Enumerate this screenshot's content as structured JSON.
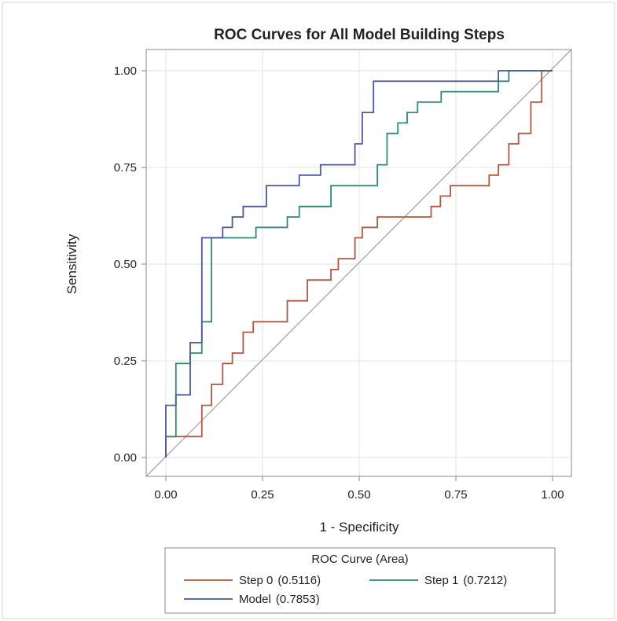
{
  "chart_data": {
    "type": "line",
    "title": "ROC Curves for All Model Building Steps",
    "xlabel": "1 - Specificity",
    "ylabel": "Sensitivity",
    "xlim": [
      0,
      1
    ],
    "ylim": [
      0,
      1
    ],
    "xticks": [
      "0.00",
      "0.25",
      "0.50",
      "0.75",
      "1.00"
    ],
    "yticks": [
      "0.00",
      "0.25",
      "0.50",
      "0.75",
      "1.00"
    ],
    "grid": true,
    "diagonal_reference": true,
    "legend": {
      "title": "ROC Curve (Area)",
      "placement": "bottom"
    },
    "series": [
      {
        "name": "Step 0",
        "area": "(0.5116)",
        "color": "#b5573f",
        "points": [
          [
            0,
            0
          ],
          [
            0,
            0.054
          ],
          [
            0.093,
            0.054
          ],
          [
            0.093,
            0.135
          ],
          [
            0.118,
            0.135
          ],
          [
            0.118,
            0.189
          ],
          [
            0.147,
            0.189
          ],
          [
            0.147,
            0.243
          ],
          [
            0.172,
            0.243
          ],
          [
            0.172,
            0.27
          ],
          [
            0.2,
            0.27
          ],
          [
            0.2,
            0.324
          ],
          [
            0.226,
            0.324
          ],
          [
            0.226,
            0.351
          ],
          [
            0.314,
            0.351
          ],
          [
            0.314,
            0.405
          ],
          [
            0.366,
            0.405
          ],
          [
            0.366,
            0.459
          ],
          [
            0.427,
            0.459
          ],
          [
            0.427,
            0.486
          ],
          [
            0.446,
            0.486
          ],
          [
            0.446,
            0.514
          ],
          [
            0.489,
            0.514
          ],
          [
            0.489,
            0.568
          ],
          [
            0.508,
            0.568
          ],
          [
            0.508,
            0.595
          ],
          [
            0.547,
            0.595
          ],
          [
            0.547,
            0.622
          ],
          [
            0.686,
            0.622
          ],
          [
            0.686,
            0.649
          ],
          [
            0.71,
            0.649
          ],
          [
            0.71,
            0.676
          ],
          [
            0.736,
            0.676
          ],
          [
            0.736,
            0.703
          ],
          [
            0.836,
            0.703
          ],
          [
            0.836,
            0.73
          ],
          [
            0.86,
            0.73
          ],
          [
            0.86,
            0.757
          ],
          [
            0.887,
            0.757
          ],
          [
            0.887,
            0.811
          ],
          [
            0.912,
            0.811
          ],
          [
            0.912,
            0.838
          ],
          [
            0.944,
            0.838
          ],
          [
            0.944,
            0.919
          ],
          [
            0.972,
            0.919
          ],
          [
            0.972,
            1
          ],
          [
            1,
            1
          ]
        ]
      },
      {
        "name": "Step 1",
        "area": "(0.7212)",
        "color": "#2e8b7a",
        "points": [
          [
            0,
            0
          ],
          [
            0,
            0.054
          ],
          [
            0.026,
            0.054
          ],
          [
            0.026,
            0.243
          ],
          [
            0.063,
            0.243
          ],
          [
            0.063,
            0.27
          ],
          [
            0.093,
            0.27
          ],
          [
            0.093,
            0.351
          ],
          [
            0.118,
            0.351
          ],
          [
            0.118,
            0.568
          ],
          [
            0.233,
            0.568
          ],
          [
            0.233,
            0.595
          ],
          [
            0.314,
            0.595
          ],
          [
            0.314,
            0.622
          ],
          [
            0.345,
            0.622
          ],
          [
            0.345,
            0.649
          ],
          [
            0.427,
            0.649
          ],
          [
            0.427,
            0.703
          ],
          [
            0.547,
            0.703
          ],
          [
            0.547,
            0.757
          ],
          [
            0.572,
            0.757
          ],
          [
            0.572,
            0.838
          ],
          [
            0.6,
            0.838
          ],
          [
            0.6,
            0.865
          ],
          [
            0.624,
            0.865
          ],
          [
            0.624,
            0.892
          ],
          [
            0.651,
            0.892
          ],
          [
            0.651,
            0.919
          ],
          [
            0.712,
            0.919
          ],
          [
            0.712,
            0.946
          ],
          [
            0.86,
            0.946
          ],
          [
            0.86,
            0.973
          ],
          [
            0.887,
            0.973
          ],
          [
            0.887,
            1
          ],
          [
            1,
            1
          ]
        ]
      },
      {
        "name": "Model",
        "area": "(0.7853)",
        "color": "#4a5a9c",
        "points": [
          [
            0,
            0
          ],
          [
            0,
            0.135
          ],
          [
            0.026,
            0.135
          ],
          [
            0.026,
            0.162
          ],
          [
            0.063,
            0.162
          ],
          [
            0.063,
            0.297
          ],
          [
            0.093,
            0.297
          ],
          [
            0.093,
            0.568
          ],
          [
            0.147,
            0.568
          ],
          [
            0.147,
            0.595
          ],
          [
            0.172,
            0.595
          ],
          [
            0.172,
            0.622
          ],
          [
            0.2,
            0.622
          ],
          [
            0.2,
            0.649
          ],
          [
            0.26,
            0.649
          ],
          [
            0.26,
            0.703
          ],
          [
            0.345,
            0.703
          ],
          [
            0.345,
            0.73
          ],
          [
            0.4,
            0.73
          ],
          [
            0.4,
            0.757
          ],
          [
            0.489,
            0.757
          ],
          [
            0.489,
            0.811
          ],
          [
            0.508,
            0.811
          ],
          [
            0.508,
            0.892
          ],
          [
            0.537,
            0.892
          ],
          [
            0.537,
            0.973
          ],
          [
            0.86,
            0.973
          ],
          [
            0.86,
            1
          ],
          [
            1,
            1
          ]
        ]
      }
    ]
  }
}
